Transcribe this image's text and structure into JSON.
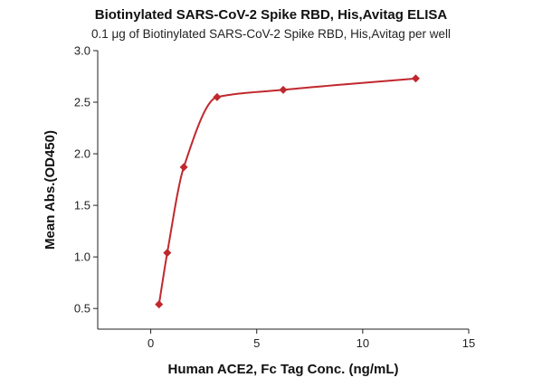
{
  "chart_data": {
    "type": "scatter",
    "title": "Biotinylated SARS-CoV-2 Spike RBD, His,Avitag ELISA",
    "subtitle": "0.1 μg of Biotinylated SARS-CoV-2 Spike RBD, His,Avitag per well",
    "xlabel": "Human ACE2, Fc Tag Conc. (ng/mL)",
    "ylabel": "Mean Abs.(OD450)",
    "xlim": [
      -2.5,
      15
    ],
    "ylim": [
      0.3,
      3.0
    ],
    "xticks": [
      0,
      5,
      10,
      15
    ],
    "xtick_labels": [
      "0",
      "5",
      "10",
      "15"
    ],
    "yticks": [
      0.5,
      1.0,
      1.5,
      2.0,
      2.5,
      3.0
    ],
    "ytick_labels": [
      "0.5",
      "1.0",
      "1.5",
      "2.0",
      "2.5",
      "3.0"
    ],
    "grid": false,
    "series": [
      {
        "x": [
          0.39,
          0.78,
          1.56,
          3.13,
          6.25,
          12.5
        ],
        "y": [
          0.54,
          1.04,
          1.87,
          2.55,
          2.62,
          2.73
        ],
        "color": "#c0282e",
        "marker": "diamond",
        "fit": "four-parameter logistic curve"
      }
    ]
  }
}
